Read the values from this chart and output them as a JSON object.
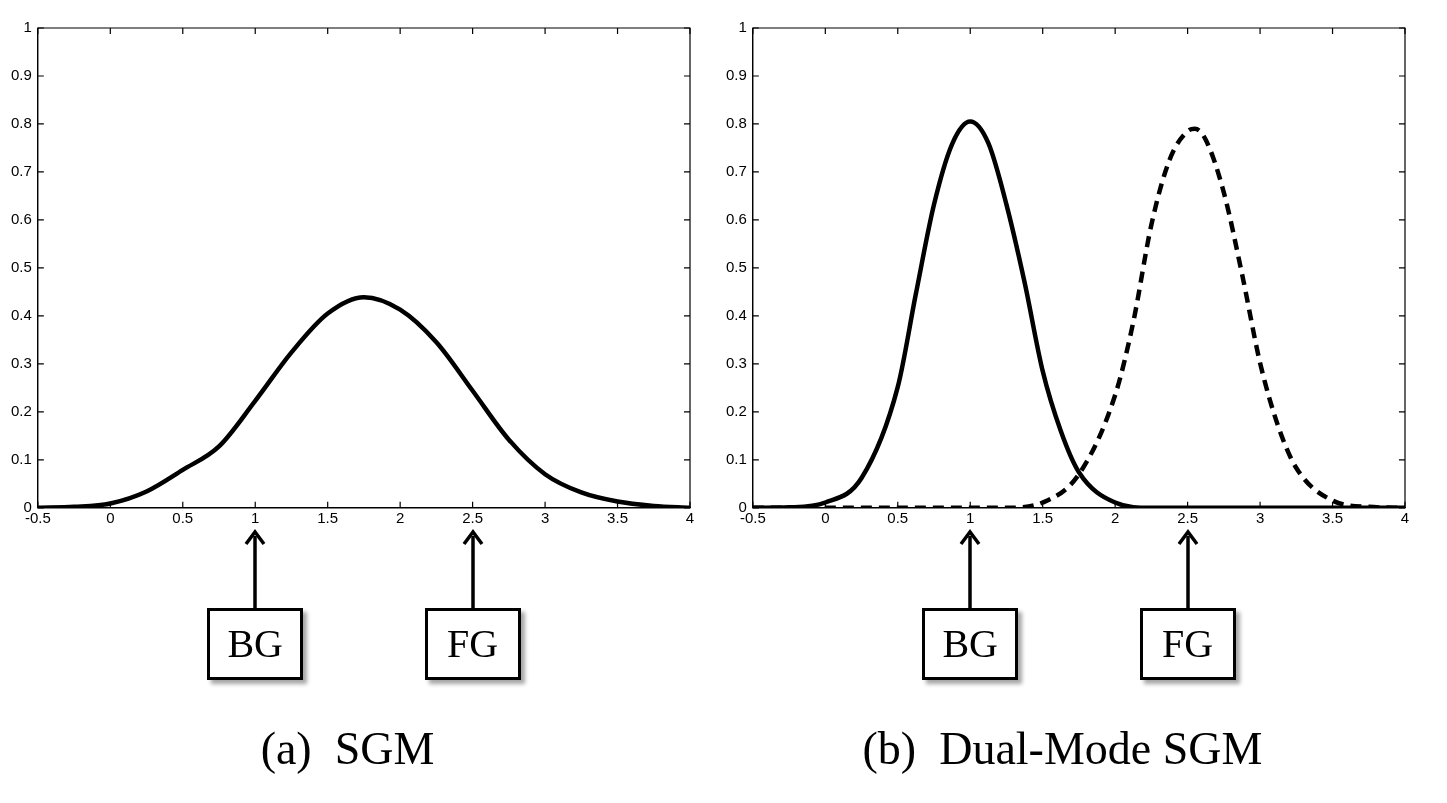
{
  "chart_data": [
    {
      "type": "line",
      "title": "(a)  SGM",
      "xlim": [
        -0.5,
        4
      ],
      "ylim": [
        0,
        1
      ],
      "xticks": [
        -0.5,
        0,
        0.5,
        1,
        1.5,
        2,
        2.5,
        3,
        3.5,
        4
      ],
      "yticks": [
        0,
        0.1,
        0.2,
        0.3,
        0.4,
        0.5,
        0.6,
        0.7,
        0.8,
        0.9,
        1
      ],
      "series": [
        {
          "color": "#000000",
          "x": [
            -0.5,
            -0.25,
            0,
            0.25,
            0.5,
            0.75,
            1,
            1.25,
            1.5,
            1.75,
            2,
            2.25,
            2.5,
            2.75,
            3,
            3.25,
            3.5,
            3.75,
            4
          ],
          "values": [
            0,
            0.002,
            0.009,
            0.034,
            0.079,
            0.128,
            0.223,
            0.324,
            0.405,
            0.439,
            0.413,
            0.345,
            0.244,
            0.142,
            0.07,
            0.032,
            0.013,
            0.004,
            0
          ]
        }
      ],
      "annotations": [
        "BG",
        "FG"
      ]
    },
    {
      "type": "line",
      "title": "(b)  Dual-Mode SGM",
      "xlim": [
        -0.5,
        4
      ],
      "ylim": [
        0,
        1
      ],
      "xticks": [
        -0.5,
        0,
        0.5,
        1,
        1.5,
        2,
        2.5,
        3,
        3.5,
        4
      ],
      "yticks": [
        0,
        0.1,
        0.2,
        0.3,
        0.4,
        0.5,
        0.6,
        0.7,
        0.8,
        0.9,
        1
      ],
      "series": [
        {
          "color": "#000000",
          "line_style": "solid",
          "x": [
            -0.5,
            -0.25,
            0,
            0.25,
            0.5,
            0.625,
            0.75,
            0.875,
            1,
            1.125,
            1.25,
            1.375,
            1.5,
            1.625,
            1.75,
            2,
            2.25,
            2.5,
            3,
            3.5,
            4
          ],
          "values": [
            0,
            0.001,
            0.011,
            0.062,
            0.252,
            0.446,
            0.632,
            0.758,
            0.805,
            0.76,
            0.632,
            0.47,
            0.285,
            0.16,
            0.074,
            0.011,
            0,
            0,
            0,
            0,
            0
          ]
        },
        {
          "color": "#000000",
          "line_style": "dashed",
          "x": [
            -0.5,
            0,
            0.5,
            1,
            1.25,
            1.5,
            1.75,
            2,
            2.125,
            2.25,
            2.375,
            2.5,
            2.55,
            2.625,
            2.75,
            2.875,
            3,
            3.125,
            3.25,
            3.5,
            3.75,
            4
          ],
          "values": [
            0,
            0,
            0,
            0,
            0,
            0.011,
            0.07,
            0.235,
            0.387,
            0.59,
            0.725,
            0.785,
            0.79,
            0.767,
            0.657,
            0.488,
            0.302,
            0.17,
            0.083,
            0.015,
            0.002,
            0
          ]
        }
      ],
      "annotations": [
        "BG",
        "FG"
      ]
    }
  ]
}
